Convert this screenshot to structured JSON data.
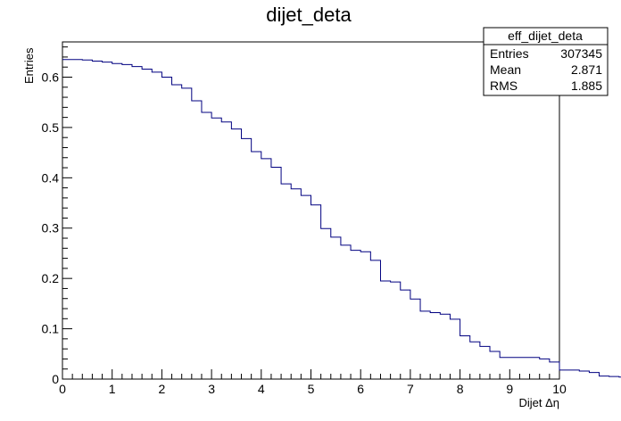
{
  "chart_data": {
    "type": "line",
    "style": "histogram-step",
    "title": "dijet_deta",
    "xlabel": "Dijet Δη",
    "ylabel": "Entries",
    "xlim": [
      0,
      10
    ],
    "ylim": [
      0,
      0.67
    ],
    "x_ticks": [
      "0",
      "1",
      "2",
      "3",
      "4",
      "5",
      "6",
      "7",
      "8",
      "9",
      "10"
    ],
    "y_ticks": [
      "0",
      "0.1",
      "0.2",
      "0.3",
      "0.4",
      "0.5",
      "0.6"
    ],
    "line_color": "#000080",
    "grid": false,
    "bin_width": 0.2,
    "bin_start": 0,
    "values": [
      0.635,
      0.635,
      0.634,
      0.632,
      0.63,
      0.627,
      0.625,
      0.621,
      0.616,
      0.61,
      0.6,
      0.585,
      0.578,
      0.553,
      0.53,
      0.519,
      0.511,
      0.497,
      0.478,
      0.452,
      0.438,
      0.421,
      0.388,
      0.378,
      0.365,
      0.346,
      0.299,
      0.282,
      0.266,
      0.256,
      0.253,
      0.236,
      0.195,
      0.193,
      0.177,
      0.159,
      0.135,
      0.132,
      0.129,
      0.119,
      0.086,
      0.074,
      0.065,
      0.055,
      0.043,
      0.043,
      0.043,
      0.043,
      0.04,
      0.034,
      0.018,
      0.018,
      0.016,
      0.013,
      0.006,
      0.005,
      0.004,
      0.003,
      0.001,
      0.0
    ],
    "stats": {
      "name": "eff_dijet_deta",
      "rows": [
        {
          "label": "Entries",
          "value": "307345"
        },
        {
          "label": "Mean",
          "value": "2.871"
        },
        {
          "label": "RMS",
          "value": "1.885"
        }
      ]
    }
  }
}
